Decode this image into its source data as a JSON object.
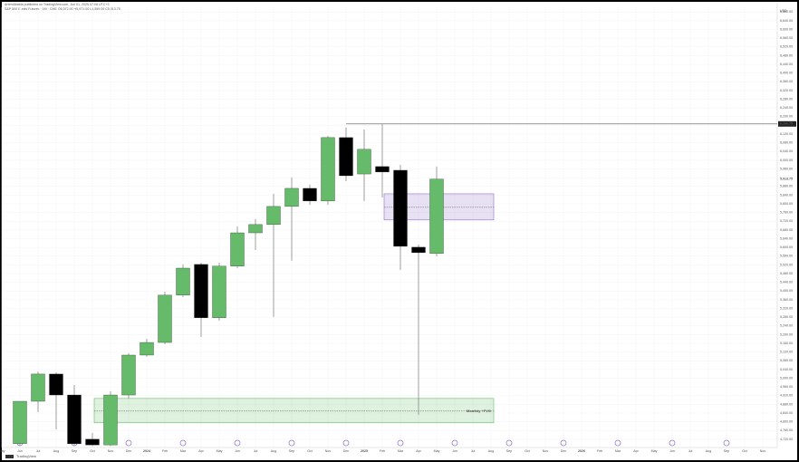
{
  "header": {
    "line1": "ArtemAkabia published on TradingView.com, Jun 01, 2025 07:08 UTC+3",
    "line2": "S&P 500 E-mini Futures · 1M · CME  O5,572.00  H5,971.00  L5,559.00  C5,913.75"
  },
  "footer": {
    "brand": "TradingView"
  },
  "chart_data": {
    "type": "candlestick",
    "currency": "USD",
    "categories": [
      "May",
      "Jun",
      "Jul",
      "Aug",
      "Sep",
      "Oct",
      "Nov",
      "Dec",
      "2024",
      "Feb",
      "Mar",
      "Apr",
      "May",
      "Jun",
      "Jul",
      "Aug",
      "Sep",
      "Oct",
      "Nov",
      "Dec",
      "2025",
      "Feb",
      "Mar",
      "Apr",
      "May",
      "Jun",
      "Jul",
      "Aug",
      "Sep",
      "Oct",
      "Nov",
      "Dec",
      "2026",
      "Feb",
      "Mar",
      "Apr",
      "May",
      "Jun",
      "Jul",
      "Aug",
      "Sep",
      "Oct",
      "Nov"
    ],
    "open": [
      null,
      4700,
      4894,
      5019,
      4923,
      4720,
      4694,
      4923,
      5106,
      5164,
      5381,
      5522,
      5277,
      5514,
      5667,
      5705,
      5788,
      5871,
      5813,
      6104,
      5937,
      5971,
      5954,
      5601,
      5572,
      null,
      null,
      null,
      null,
      null,
      null,
      null,
      null,
      null,
      null,
      null,
      null,
      null,
      null,
      null,
      null,
      null,
      null
    ],
    "high": [
      null,
      4894,
      5031,
      5027,
      4969,
      4749,
      4940,
      5115,
      5181,
      5397,
      5522,
      5530,
      5530,
      5696,
      5730,
      5846,
      5921,
      5888,
      6112,
      6150,
      6141,
      6166.75,
      5979,
      5613,
      5971,
      null,
      null,
      null,
      null,
      null,
      null,
      null,
      null,
      null,
      null,
      null,
      null,
      null,
      null,
      null,
      null,
      null,
      null
    ],
    "low": [
      null,
      4690,
      4844,
      4765,
      4690,
      4690,
      4690,
      4907,
      5098,
      5156,
      5372,
      5189,
      5264,
      5505,
      5588,
      5281,
      5539,
      5796,
      5796,
      5904,
      5813,
      5829,
      5497,
      4832,
      5559,
      null,
      null,
      null,
      null,
      null,
      null,
      null,
      null,
      null,
      null,
      null,
      null,
      null,
      null,
      null,
      null,
      null,
      null
    ],
    "close": [
      null,
      4894,
      5019,
      4923,
      4699,
      4694,
      4923,
      5106,
      5164,
      5381,
      5505,
      5277,
      5514,
      5667,
      5705,
      5788,
      5871,
      5813,
      6104,
      5929,
      6050,
      5946,
      5605,
      5576,
      5913.75,
      null,
      null,
      null,
      null,
      null,
      null,
      null,
      null,
      null,
      null,
      null,
      null,
      null,
      null,
      null,
      null,
      null,
      null
    ],
    "up_color": "#66bb6a",
    "down_color": "#000000",
    "ylim": [
      4682,
      6702
    ],
    "yticks": [
      {
        "value": 4720,
        "label": "4,720.00"
      },
      {
        "value": 4760,
        "label": "4,760.00"
      },
      {
        "value": 4800,
        "label": "4,800.00"
      },
      {
        "value": 4840,
        "label": "4,840.00"
      },
      {
        "value": 4880,
        "label": "4,880.00"
      },
      {
        "value": 4920,
        "label": "4,920.00"
      },
      {
        "value": 4960,
        "label": "4,960.00"
      },
      {
        "value": 5000,
        "label": "5,000.00"
      },
      {
        "value": 5040,
        "label": "5,040.00"
      },
      {
        "value": 5080,
        "label": "5,080.00"
      },
      {
        "value": 5120,
        "label": "5,120.00"
      },
      {
        "value": 5160,
        "label": "5,160.00"
      },
      {
        "value": 5200,
        "label": "5,200.00"
      },
      {
        "value": 5240,
        "label": "5,240.00"
      },
      {
        "value": 5280,
        "label": "5,280.00"
      },
      {
        "value": 5320,
        "label": "5,320.00"
      },
      {
        "value": 5360,
        "label": "5,360.00"
      },
      {
        "value": 5400,
        "label": "5,400.00"
      },
      {
        "value": 5440,
        "label": "5,440.00"
      },
      {
        "value": 5480,
        "label": "5,480.00"
      },
      {
        "value": 5520,
        "label": "5,520.00"
      },
      {
        "value": 5560,
        "label": "5,560.00"
      },
      {
        "value": 5600,
        "label": "5,600.00"
      },
      {
        "value": 5640,
        "label": "5,640.00"
      },
      {
        "value": 5680,
        "label": "5,680.00"
      },
      {
        "value": 5720,
        "label": "5,720.00"
      },
      {
        "value": 5760,
        "label": "5,760.00"
      },
      {
        "value": 5800,
        "label": "5,800.00"
      },
      {
        "value": 5840,
        "label": "5,840.00"
      },
      {
        "value": 5880,
        "label": "5,880.00"
      },
      {
        "value": 5920,
        "label": "5,920.00"
      },
      {
        "value": 5960,
        "label": "5,960.00"
      },
      {
        "value": 6000,
        "label": "6,000.00"
      },
      {
        "value": 6040,
        "label": "6,040.00"
      },
      {
        "value": 6080,
        "label": "6,080.00"
      },
      {
        "value": 6120,
        "label": "6,120.00"
      },
      {
        "value": 6160,
        "label": "6,160.00"
      },
      {
        "value": 6200,
        "label": "6,200.00"
      },
      {
        "value": 6240,
        "label": "6,240.00"
      },
      {
        "value": 6280,
        "label": "6,280.00"
      },
      {
        "value": 6320,
        "label": "6,320.00"
      },
      {
        "value": 6360,
        "label": "6,360.00"
      },
      {
        "value": 6400,
        "label": "6,400.00"
      },
      {
        "value": 6440,
        "label": "6,440.00"
      },
      {
        "value": 6480,
        "label": "6,480.00"
      },
      {
        "value": 6520,
        "label": "6,520.00"
      },
      {
        "value": 6560,
        "label": "6,560.00"
      },
      {
        "value": 6600,
        "label": "6,600.00"
      },
      {
        "value": 6640,
        "label": "6,640.00"
      },
      {
        "value": 6680,
        "label": "6,680.00"
      }
    ],
    "axis_labels": [
      {
        "value": 6166.75,
        "label": "6,166.75"
      },
      {
        "value": 5913.75,
        "label": "5,913.75"
      }
    ],
    "zones": [
      {
        "label": "Monthly +FVG",
        "top": 4907,
        "bottom": 4795,
        "mid": 4849,
        "color": "#4caf50"
      },
      {
        "top": 5846,
        "bottom": 5726,
        "mid": 5784,
        "color": "#7e57c2"
      }
    ],
    "grid": true
  }
}
